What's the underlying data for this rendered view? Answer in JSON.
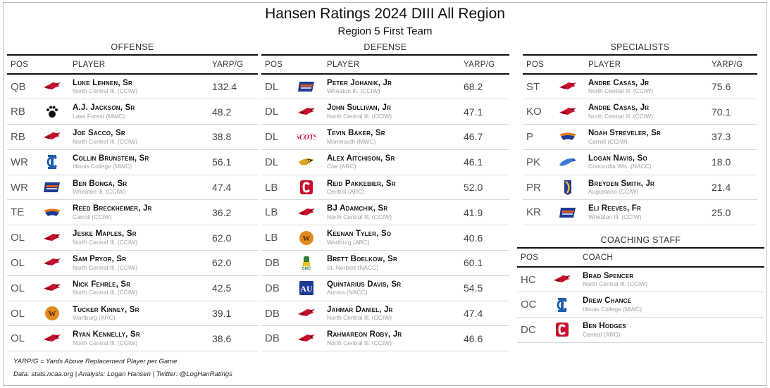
{
  "header": {
    "title": "Hansen Ratings 2024 DIII All Region",
    "subtitle": "Region 5 First Team"
  },
  "offense": {
    "title": "OFFENSE",
    "columns": [
      "POS",
      "PLAYER",
      "YARP/G"
    ],
    "rows": [
      {
        "pos": "QB",
        "name": "Luke Lehnen, Sr",
        "team": "North Central Ill. (CCIW)",
        "val": "132.4",
        "logo": "cardinal-icon"
      },
      {
        "pos": "RB",
        "name": "A.J. Jackson, Sr",
        "team": "Lake Forest (MWC)",
        "val": "48.2",
        "logo": "paw-icon"
      },
      {
        "pos": "RB",
        "name": "Joe Sacco, Sr",
        "team": "North Central Ill. (CCIW)",
        "val": "38.8",
        "logo": "cardinal-icon"
      },
      {
        "pos": "WR",
        "name": "Collin Brunstein, Sr",
        "team": "Illinois College (MWC)",
        "val": "56.1",
        "logo": "ic-icon"
      },
      {
        "pos": "WR",
        "name": "Ben Bonga, Sr",
        "team": "Wheaton Ill. (CCIW)",
        "val": "47.4",
        "logo": "thunder-icon"
      },
      {
        "pos": "TE",
        "name": "Reed Breckheimer, Jr",
        "team": "Carroll (CCIW)",
        "val": "36.2",
        "logo": "pioneer-icon"
      },
      {
        "pos": "OL",
        "name": "Jeske Maples, Sr",
        "team": "North Central Ill. (CCIW)",
        "val": "62.0",
        "logo": "cardinal-icon"
      },
      {
        "pos": "OL",
        "name": "Sam Pryor, Sr",
        "team": "North Central Ill. (CCIW)",
        "val": "62.0",
        "logo": "cardinal-icon"
      },
      {
        "pos": "OL",
        "name": "Nick Fehrle, Sr",
        "team": "North Central Ill. (CCIW)",
        "val": "42.5",
        "logo": "cardinal-icon"
      },
      {
        "pos": "OL",
        "name": "Tucker Kinney, Sr",
        "team": "Wartburg (ARC)",
        "val": "39.1",
        "logo": "w-icon"
      },
      {
        "pos": "OL",
        "name": "Ryan Kennelly, Sr",
        "team": "North Central Ill. (CCIW)",
        "val": "38.6",
        "logo": "cardinal-icon"
      }
    ]
  },
  "defense": {
    "title": "DEFENSE",
    "columns": [
      "POS",
      "PLAYER",
      "YARP/G"
    ],
    "rows": [
      {
        "pos": "DL",
        "name": "Peter Johanik, Jr",
        "team": "Wheaton Ill. (CCIW)",
        "val": "68.2",
        "logo": "thunder-icon"
      },
      {
        "pos": "DL",
        "name": "John Sullivan, Jr",
        "team": "North Central Ill. (CCIW)",
        "val": "47.1",
        "logo": "cardinal-icon"
      },
      {
        "pos": "DL",
        "name": "Tevin Baker, Sr",
        "team": "Monmouth (MWC)",
        "val": "46.7",
        "logo": "scots-icon"
      },
      {
        "pos": "DL",
        "name": "Alex Aitchison, Sr",
        "team": "Coe (ARC)",
        "val": "46.1",
        "logo": "kohawk-icon"
      },
      {
        "pos": "LB",
        "name": "Reid Pakkebier, Sr",
        "team": "Central (ARC)",
        "val": "52.0",
        "logo": "c-icon"
      },
      {
        "pos": "LB",
        "name": "BJ Adamchik, Sr",
        "team": "North Central Ill. (CCIW)",
        "val": "41.9",
        "logo": "cardinal-icon"
      },
      {
        "pos": "LB",
        "name": "Keenan Tyler, So",
        "team": "Wartburg (ARC)",
        "val": "40.6",
        "logo": "w-icon"
      },
      {
        "pos": "DB",
        "name": "Brett Boelkow, Sr",
        "team": "St. Norbert (NACC)",
        "val": "60.1",
        "logo": "green-knight-icon"
      },
      {
        "pos": "DB",
        "name": "Quintarius Davis, Sr",
        "team": "Aurora (NACC)",
        "val": "54.5",
        "logo": "au-icon"
      },
      {
        "pos": "DB",
        "name": "Jahmar Daniel, Jr",
        "team": "North Central Ill. (CCIW)",
        "val": "47.4",
        "logo": "cardinal-icon"
      },
      {
        "pos": "DB",
        "name": "Rahmareon Roby, Jr",
        "team": "North Central Ill. (CCIW)",
        "val": "46.6",
        "logo": "cardinal-icon"
      }
    ]
  },
  "specialists": {
    "title": "SPECIALISTS",
    "columns": [
      "POS",
      "PLAYER",
      "YARP/G"
    ],
    "rows": [
      {
        "pos": "ST",
        "name": "Andre Casas, Jr",
        "team": "North Central Ill. (CCIW)",
        "val": "75.6",
        "logo": "cardinal-icon"
      },
      {
        "pos": "KO",
        "name": "Andre Casas, Jr",
        "team": "North Central Ill. (CCIW)",
        "val": "70.1",
        "logo": "cardinal-icon"
      },
      {
        "pos": "P",
        "name": "Noah Streveler, Sr",
        "team": "Carroll (CCIW)",
        "val": "37.3",
        "logo": "pioneer-icon"
      },
      {
        "pos": "PK",
        "name": "Logan Navis, So",
        "team": "Concordia Wis. (NACC)",
        "val": "18.0",
        "logo": "falcon-icon"
      },
      {
        "pos": "PR",
        "name": "Breyden Smith, Jr",
        "team": "Augustana (CCIW)",
        "val": "21.4",
        "logo": "viking-icon"
      },
      {
        "pos": "KR",
        "name": "Eli Reeves, Fr",
        "team": "Wheaton Ill. (CCIW)",
        "val": "25.0",
        "logo": "thunder-icon"
      }
    ]
  },
  "coaching": {
    "title": "COACHING STAFF",
    "columns": [
      "POS",
      "COACH"
    ],
    "rows": [
      {
        "pos": "HC",
        "name": "Brad Spencer",
        "team": "North Central Ill. (CCIW)",
        "logo": "cardinal-icon"
      },
      {
        "pos": "OC",
        "name": "Drew Chance",
        "team": "Illinois College (MWC)",
        "logo": "ic-icon"
      },
      {
        "pos": "DC",
        "name": "Ben Hodges",
        "team": "Central (ARC)",
        "logo": "c-icon"
      }
    ]
  },
  "footer": {
    "note": "YARP/G = Yards Above Replacement Player per Game",
    "credits": "Data: stats.ncaa.org | Analysis: Logan Hansen | Twitter: @LogHanRatings"
  },
  "colors": {
    "cardinal_red": "#c8102e",
    "wheaton_blue": "#1f3a93",
    "wartburg_orange": "#e07b17",
    "central_red": "#c8102e"
  }
}
